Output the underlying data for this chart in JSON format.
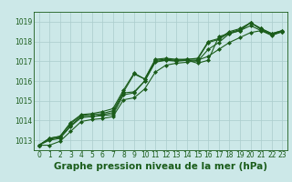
{
  "title": "Graphe pression niveau de la mer (hPa)",
  "background_color": "#cce8e8",
  "grid_color": "#aacccc",
  "line_color": "#1a5c1a",
  "xlim": [
    -0.5,
    23.5
  ],
  "ylim": [
    1012.5,
    1019.5
  ],
  "yticks": [
    1013,
    1014,
    1015,
    1016,
    1017,
    1018,
    1019
  ],
  "xticks": [
    0,
    1,
    2,
    3,
    4,
    5,
    6,
    7,
    8,
    9,
    10,
    11,
    12,
    13,
    14,
    15,
    16,
    17,
    18,
    19,
    20,
    21,
    22,
    23
  ],
  "series": [
    [
      1012.75,
      1013.0,
      1013.1,
      1013.7,
      1014.15,
      1014.2,
      1014.25,
      1014.3,
      1015.3,
      1015.4,
      1016.0,
      1016.95,
      1017.05,
      1017.0,
      1017.05,
      1016.9,
      1017.05,
      1018.25,
      1018.4,
      1018.55,
      1018.8,
      1018.55,
      1018.35,
      1018.5
    ],
    [
      1012.75,
      1013.05,
      1013.15,
      1013.75,
      1014.2,
      1014.2,
      1014.3,
      1014.4,
      1015.4,
      1015.45,
      1016.0,
      1017.0,
      1017.05,
      1017.05,
      1017.05,
      1017.0,
      1017.6,
      1017.95,
      1018.4,
      1018.55,
      1018.95,
      1018.6,
      1018.35,
      1018.5
    ],
    [
      1012.75,
      1013.1,
      1013.2,
      1013.85,
      1014.25,
      1014.3,
      1014.35,
      1014.5,
      1015.45,
      1016.35,
      1016.1,
      1017.05,
      1017.1,
      1017.05,
      1017.1,
      1017.1,
      1017.95,
      1018.1,
      1018.45,
      1018.6,
      1018.95,
      1018.65,
      1018.4,
      1018.55
    ],
    [
      1012.75,
      1013.1,
      1013.2,
      1013.9,
      1014.3,
      1014.35,
      1014.45,
      1014.6,
      1015.55,
      1016.4,
      1016.1,
      1017.1,
      1017.15,
      1017.1,
      1017.1,
      1017.15,
      1018.0,
      1018.15,
      1018.5,
      1018.65,
      1018.95,
      1018.65,
      1018.4,
      1018.55
    ],
    [
      1012.75,
      1012.75,
      1012.95,
      1013.45,
      1013.95,
      1014.05,
      1014.1,
      1014.2,
      1015.05,
      1015.15,
      1015.6,
      1016.45,
      1016.8,
      1016.9,
      1016.95,
      1017.05,
      1017.25,
      1017.6,
      1017.95,
      1018.2,
      1018.45,
      1018.55,
      1018.3,
      1018.5
    ]
  ],
  "marker": "D",
  "markersize": 2.0,
  "linewidth": 0.8,
  "title_fontsize": 7.5,
  "tick_fontsize": 5.5,
  "tick_label_color": "#1a5c1a",
  "xlabel_fontsize": 7.5
}
